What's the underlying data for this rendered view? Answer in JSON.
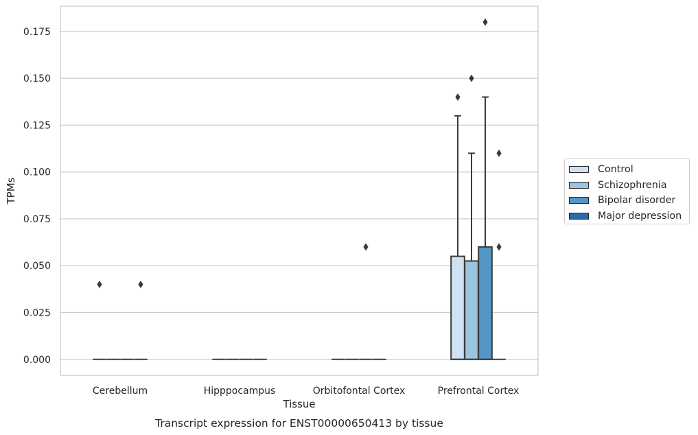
{
  "chart_data": {
    "type": "box",
    "title": "",
    "caption": "Transcript expression for ENST00000650413 by tissue",
    "xlabel": "Tissue",
    "ylabel": "TPMs",
    "ylim": [
      -0.0085,
      0.1885
    ],
    "yticks": [
      "0.000",
      "0.025",
      "0.050",
      "0.075",
      "0.100",
      "0.125",
      "0.150",
      "0.175"
    ],
    "grid": true,
    "legend_position": "right",
    "categories": [
      "Cerebellum",
      "Hipppocampus",
      "Orbitofontal Cortex",
      "Prefrontal Cortex"
    ],
    "series": [
      {
        "name": "Control",
        "color": "#d0e1f1",
        "boxes": [
          {
            "category": "Cerebellum",
            "q1": 0,
            "median": 0,
            "q3": 0,
            "whisker_low": 0,
            "whisker_high": 0,
            "outliers": [
              0.04
            ]
          },
          {
            "category": "Hipppocampus",
            "q1": 0,
            "median": 0,
            "q3": 0,
            "whisker_low": 0,
            "whisker_high": 0,
            "outliers": []
          },
          {
            "category": "Orbitofontal Cortex",
            "q1": 0,
            "median": 0,
            "q3": 0,
            "whisker_low": 0,
            "whisker_high": 0,
            "outliers": []
          },
          {
            "category": "Prefrontal Cortex",
            "q1": 0,
            "median": 0,
            "q3": 0.055,
            "whisker_low": 0,
            "whisker_high": 0.13,
            "outliers": [
              0.14
            ]
          }
        ]
      },
      {
        "name": "Schizophrenia",
        "color": "#9bc4de",
        "boxes": [
          {
            "category": "Cerebellum",
            "q1": 0,
            "median": 0,
            "q3": 0,
            "whisker_low": 0,
            "whisker_high": 0,
            "outliers": []
          },
          {
            "category": "Hipppocampus",
            "q1": 0,
            "median": 0,
            "q3": 0,
            "whisker_low": 0,
            "whisker_high": 0,
            "outliers": []
          },
          {
            "category": "Orbitofontal Cortex",
            "q1": 0,
            "median": 0,
            "q3": 0,
            "whisker_low": 0,
            "whisker_high": 0,
            "outliers": []
          },
          {
            "category": "Prefrontal Cortex",
            "q1": 0,
            "median": 0,
            "q3": 0.0525,
            "whisker_low": 0,
            "whisker_high": 0.11,
            "outliers": [
              0.15
            ]
          }
        ]
      },
      {
        "name": "Bipolar disorder",
        "color": "#5497c6",
        "boxes": [
          {
            "category": "Cerebellum",
            "q1": 0,
            "median": 0,
            "q3": 0,
            "whisker_low": 0,
            "whisker_high": 0,
            "outliers": []
          },
          {
            "category": "Hipppocampus",
            "q1": 0,
            "median": 0,
            "q3": 0,
            "whisker_low": 0,
            "whisker_high": 0,
            "outliers": []
          },
          {
            "category": "Orbitofontal Cortex",
            "q1": 0,
            "median": 0,
            "q3": 0,
            "whisker_low": 0,
            "whisker_high": 0,
            "outliers": [
              0.06
            ]
          },
          {
            "category": "Prefrontal Cortex",
            "q1": 0,
            "median": 0,
            "q3": 0.06,
            "whisker_low": 0,
            "whisker_high": 0.14,
            "outliers": [
              0.18
            ]
          }
        ]
      },
      {
        "name": "Major depression",
        "color": "#2a6aa9",
        "boxes": [
          {
            "category": "Cerebellum",
            "q1": 0,
            "median": 0,
            "q3": 0,
            "whisker_low": 0,
            "whisker_high": 0,
            "outliers": [
              0.04
            ]
          },
          {
            "category": "Hipppocampus",
            "q1": 0,
            "median": 0,
            "q3": 0,
            "whisker_low": 0,
            "whisker_high": 0,
            "outliers": []
          },
          {
            "category": "Orbitofontal Cortex",
            "q1": 0,
            "median": 0,
            "q3": 0,
            "whisker_low": 0,
            "whisker_high": 0,
            "outliers": []
          },
          {
            "category": "Prefrontal Cortex",
            "q1": 0,
            "median": 0,
            "q3": 0,
            "whisker_low": 0,
            "whisker_high": 0,
            "outliers": [
              0.06,
              0.11
            ]
          }
        ]
      }
    ]
  }
}
